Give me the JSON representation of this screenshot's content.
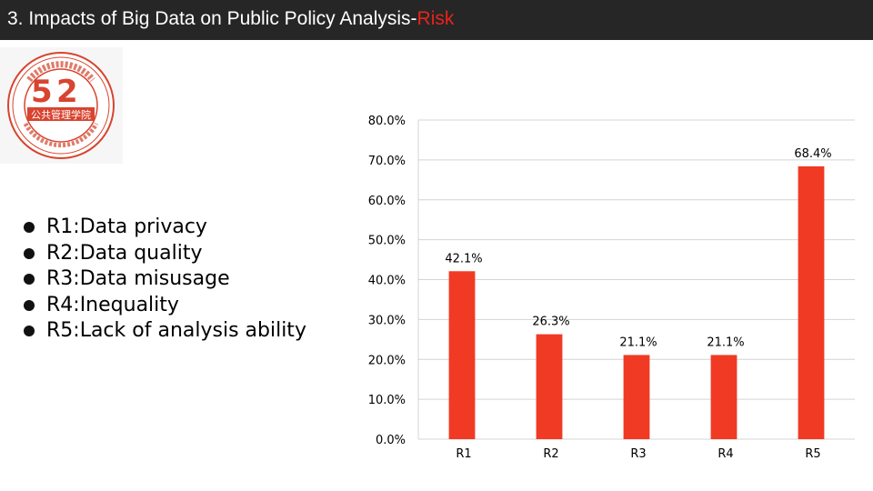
{
  "slide": {
    "title_main": "3. Impacts of Big Data on Public Policy Analysis-",
    "title_accent": "Risk",
    "accent_color": "#e8231d",
    "bar_color": "#f03a24"
  },
  "logo": {
    "icon": "university-seal-icon",
    "ring_text": "HUAZHONG UNIVERSITY OF SCIENCE AND TECHNOLOGY",
    "center_text": "公共管理学院"
  },
  "legend_items": [
    {
      "label": "R1:Data privacy"
    },
    {
      "label": "R2:Data quality"
    },
    {
      "label": "R3:Data misusage"
    },
    {
      "label": "R4:Inequality"
    },
    {
      "label": "R5:Lack of analysis ability"
    }
  ],
  "chart_data": {
    "type": "bar",
    "categories": [
      "R1",
      "R2",
      "R3",
      "R4",
      "R5"
    ],
    "values": [
      42.1,
      26.3,
      21.1,
      21.1,
      68.4
    ],
    "data_labels": [
      "42.1%",
      "26.3%",
      "21.1%",
      "21.1%",
      "68.4%"
    ],
    "y_ticks": [
      "0.0%",
      "10.0%",
      "20.0%",
      "30.0%",
      "40.0%",
      "50.0%",
      "60.0%",
      "70.0%",
      "80.0%"
    ],
    "ylim": [
      0,
      80
    ],
    "grid": true,
    "legend": "none"
  }
}
